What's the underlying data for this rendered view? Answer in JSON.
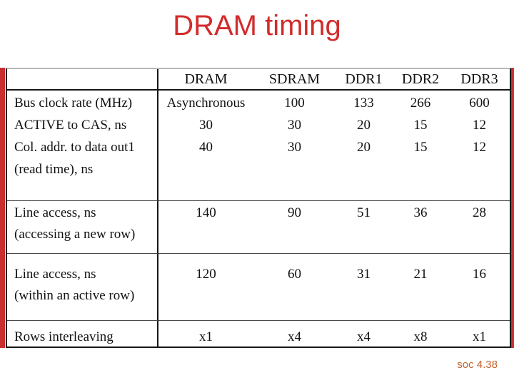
{
  "slide": {
    "title": "DRAM timing",
    "footer": "soc 4.38"
  },
  "colors": {
    "title_red": "#d22b2b",
    "edge_strip_red": "#c92f2f",
    "footer_orange": "#c2632e",
    "table_text": "#111111",
    "table_border": "#161616",
    "background": "#ffffff"
  },
  "table": {
    "header": [
      "",
      "DRAM",
      "SDRAM",
      "DDR1",
      "DDR2",
      "DDR3"
    ],
    "groups": [
      {
        "label_lines": [
          "Bus clock rate (MHz)",
          "ACTIVE to CAS, ns",
          "Col. addr. to data out1",
          "(read time), ns"
        ],
        "cols": [
          [
            "Asynchronous",
            "30",
            "40"
          ],
          [
            "100",
            "30",
            "30"
          ],
          [
            "133",
            "20",
            "20"
          ],
          [
            "266",
            "15",
            "15"
          ],
          [
            "600",
            "12",
            "12"
          ]
        ]
      },
      {
        "label_lines": [
          "Line access, ns",
          "(accessing a new row)"
        ],
        "cols": [
          [
            "140"
          ],
          [
            "90"
          ],
          [
            "51"
          ],
          [
            "36"
          ],
          [
            "28"
          ]
        ]
      },
      {
        "label_lines": [
          "Line access, ns",
          "(within an active row)"
        ],
        "cols": [
          [
            "120"
          ],
          [
            "60"
          ],
          [
            "31"
          ],
          [
            "21"
          ],
          [
            "16"
          ]
        ]
      },
      {
        "label_lines": [
          "Rows interleaving"
        ],
        "cols": [
          [
            "x1"
          ],
          [
            "x4"
          ],
          [
            "x4"
          ],
          [
            "x8"
          ],
          [
            "x1"
          ]
        ]
      }
    ]
  },
  "chart_data": {
    "type": "table",
    "title": "DRAM timing",
    "columns": [
      "",
      "DRAM",
      "SDRAM",
      "DDR1",
      "DDR2",
      "DDR3"
    ],
    "rows": [
      [
        "Bus clock rate (MHz)",
        "Asynchronous",
        "100",
        "133",
        "266",
        "600"
      ],
      [
        "ACTIVE to CAS, ns",
        "30",
        "30",
        "20",
        "15",
        "12"
      ],
      [
        "Col. addr. to data out1 (read time), ns",
        "40",
        "30",
        "20",
        "15",
        "12"
      ],
      [
        "Line access, ns (accessing a new row)",
        "140",
        "90",
        "51",
        "36",
        "28"
      ],
      [
        "Line access, ns (within an active row)",
        "120",
        "60",
        "31",
        "21",
        "16"
      ],
      [
        "Rows interleaving",
        "x1",
        "x4",
        "x4",
        "x8",
        "x1"
      ]
    ]
  }
}
